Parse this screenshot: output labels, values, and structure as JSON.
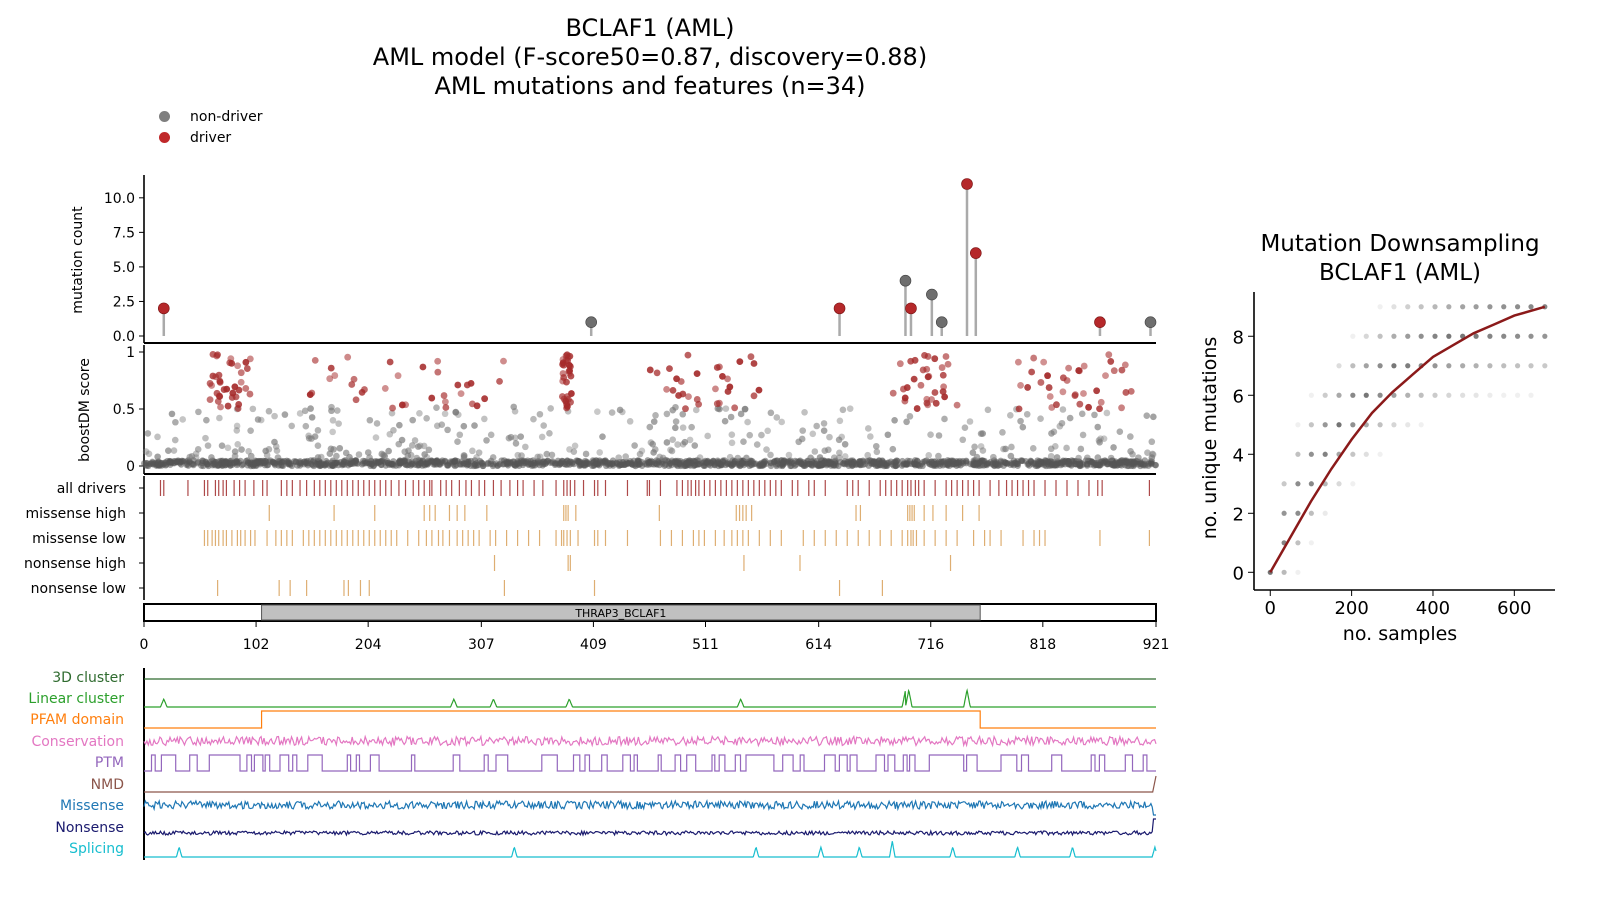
{
  "titles": {
    "line1": "BCLAF1 (AML)",
    "line2": "AML model (F-score50=0.87, discovery=0.88)",
    "line3": "AML mutations and features (n=34)"
  },
  "legend": {
    "non_driver": "non-driver",
    "driver": "driver",
    "non_driver_color": "#7f7f7f",
    "driver_color": "#c0282a"
  },
  "colors": {
    "driver": "#b5282a",
    "non_driver": "#6e6e6e",
    "track_drivers": "#a02a2a",
    "track_missense": "#d9a15a",
    "curve": "#8b1a1a"
  },
  "chart_data": [
    {
      "type": "scatter",
      "name": "lollipop",
      "ylabel": "mutation count",
      "yticks": [
        "0.0",
        "2.5",
        "5.0",
        "7.5",
        "10.0"
      ],
      "ylim": [
        0,
        11.5
      ],
      "xlim": [
        0,
        921
      ],
      "points": [
        {
          "x": 18,
          "y": 2,
          "driver": true
        },
        {
          "x": 407,
          "y": 1,
          "driver": false
        },
        {
          "x": 633,
          "y": 2,
          "driver": true
        },
        {
          "x": 693,
          "y": 4,
          "driver": false
        },
        {
          "x": 698,
          "y": 2,
          "driver": true
        },
        {
          "x": 717,
          "y": 3,
          "driver": false
        },
        {
          "x": 726,
          "y": 1,
          "driver": false
        },
        {
          "x": 749,
          "y": 11,
          "driver": true
        },
        {
          "x": 757,
          "y": 6,
          "driver": true
        },
        {
          "x": 870,
          "y": 1,
          "driver": true
        },
        {
          "x": 916,
          "y": 1,
          "driver": false
        }
      ]
    },
    {
      "type": "scatter",
      "name": "boostDM",
      "ylabel": "boostDM score",
      "yticks": [
        "0",
        "0.5",
        "1"
      ],
      "ylim": [
        0,
        1
      ],
      "xlim": [
        0,
        921
      ]
    },
    {
      "type": "table",
      "name": "tracks",
      "tracks": [
        {
          "label": "all drivers",
          "positions": [
            15,
            18,
            40,
            55,
            58,
            65,
            68,
            72,
            75,
            82,
            87,
            92,
            100,
            108,
            112,
            125,
            130,
            135,
            142,
            148,
            155,
            160,
            165,
            170,
            175,
            180,
            185,
            190,
            195,
            200,
            205,
            210,
            215,
            220,
            225,
            232,
            238,
            245,
            250,
            255,
            260,
            262,
            270,
            275,
            280,
            287,
            293,
            298,
            305,
            310,
            318,
            325,
            333,
            340,
            345,
            355,
            363,
            375,
            382,
            385,
            388,
            392,
            400,
            410,
            413,
            420,
            440,
            458,
            460,
            470,
            485,
            490,
            495,
            498,
            502,
            505,
            510,
            515,
            520,
            525,
            530,
            535,
            540,
            545,
            550,
            555,
            560,
            565,
            570,
            575,
            580,
            590,
            595,
            605,
            610,
            620,
            640,
            645,
            650,
            660,
            670,
            675,
            680,
            685,
            690,
            695,
            698,
            702,
            705,
            710,
            720,
            730,
            735,
            740,
            745,
            750,
            755,
            760,
            770,
            778,
            785,
            790,
            795,
            800,
            805,
            810,
            820,
            830,
            840,
            850,
            860,
            868,
            872,
            915
          ]
        },
        {
          "label": "missense high",
          "positions": [
            114,
            173,
            210,
            255,
            260,
            265,
            278,
            285,
            292,
            312,
            382,
            384,
            386,
            393,
            469,
            539,
            542,
            545,
            548,
            553,
            648,
            652,
            695,
            697,
            699,
            701,
            710,
            718,
            730,
            745,
            760
          ]
        },
        {
          "label": "missense low",
          "positions": [
            55,
            58,
            62,
            65,
            68,
            72,
            75,
            80,
            85,
            88,
            92,
            97,
            101,
            112,
            120,
            125,
            130,
            135,
            145,
            150,
            155,
            160,
            165,
            170,
            175,
            180,
            185,
            190,
            195,
            200,
            205,
            210,
            215,
            220,
            225,
            230,
            240,
            250,
            257,
            262,
            268,
            272,
            278,
            285,
            290,
            295,
            300,
            305,
            315,
            320,
            330,
            340,
            350,
            360,
            375,
            380,
            382,
            385,
            388,
            395,
            410,
            413,
            420,
            440,
            470,
            480,
            490,
            500,
            505,
            510,
            520,
            528,
            535,
            540,
            545,
            550,
            560,
            570,
            580,
            600,
            610,
            620,
            630,
            640,
            650,
            660,
            670,
            680,
            690,
            695,
            698,
            700,
            703,
            710,
            720,
            730,
            740,
            755,
            765,
            770,
            780,
            800,
            810,
            815,
            820,
            870,
            915
          ]
        },
        {
          "label": "nonsense high",
          "positions": [
            319,
            386,
            388,
            546,
            597,
            734
          ]
        },
        {
          "label": "nonsense low",
          "positions": [
            67,
            123,
            133,
            148,
            182,
            186,
            197,
            205,
            328,
            410,
            633,
            672
          ]
        }
      ]
    },
    {
      "type": "bar",
      "name": "domain-axis",
      "domain_label": "THRAP3_BCLAF1",
      "domain_range": [
        107,
        761
      ],
      "xticks": [
        "0",
        "102",
        "204",
        "307",
        "409",
        "511",
        "614",
        "716",
        "818",
        "921"
      ],
      "xlim": [
        0,
        921
      ]
    },
    {
      "type": "line",
      "name": "features",
      "series": [
        {
          "name": "3D cluster",
          "color": "#2f6b2f"
        },
        {
          "name": "Linear cluster",
          "color": "#2ca02c"
        },
        {
          "name": "PFAM domain",
          "color": "#ff7f0e"
        },
        {
          "name": "Conservation",
          "color": "#e377c2"
        },
        {
          "name": "PTM",
          "color": "#9467bd"
        },
        {
          "name": "NMD",
          "color": "#8c564b"
        },
        {
          "name": "Missense",
          "color": "#1f77b4"
        },
        {
          "name": "Nonsense",
          "color": "#1a1a6e"
        },
        {
          "name": "Splicing",
          "color": "#17becf"
        }
      ],
      "linear_cluster_peaks": [
        18,
        282,
        318,
        387,
        543,
        693,
        696,
        749
      ],
      "splicing_peaks": [
        32,
        337,
        557,
        616,
        651,
        681,
        736,
        795,
        845,
        920
      ]
    },
    {
      "type": "scatter",
      "name": "downsampling",
      "title": "Mutation Downsampling\nBCLAF1 (AML)",
      "xlabel": "no. samples",
      "ylabel": "no. unique mutations",
      "xticks": [
        "0",
        "200",
        "400",
        "600"
      ],
      "yticks": [
        "0",
        "2",
        "4",
        "6",
        "8"
      ],
      "xlim": [
        -40,
        700
      ],
      "ylim": [
        -0.6,
        9.5
      ],
      "curve": [
        [
          0,
          0
        ],
        [
          50,
          1.2
        ],
        [
          100,
          2.4
        ],
        [
          150,
          3.5
        ],
        [
          200,
          4.5
        ],
        [
          250,
          5.4
        ],
        [
          300,
          6.1
        ],
        [
          350,
          6.7
        ],
        [
          400,
          7.3
        ],
        [
          450,
          7.7
        ],
        [
          500,
          8.1
        ],
        [
          550,
          8.4
        ],
        [
          600,
          8.7
        ],
        [
          675,
          9.0
        ]
      ],
      "sample_x": [
        0,
        34,
        68,
        101,
        135,
        169,
        203,
        236,
        270,
        304,
        338,
        371,
        405,
        439,
        473,
        506,
        540,
        574,
        608,
        641,
        675
      ]
    }
  ]
}
